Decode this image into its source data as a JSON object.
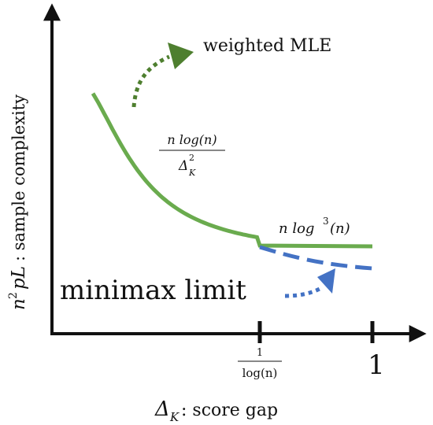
{
  "chart_data": {
    "type": "line",
    "xlabel": {
      "var": "Δ",
      "sub": "K",
      "text": ": score gap"
    },
    "ylabel": {
      "var": "n",
      "sup": "2",
      "rest": "pL",
      "text": ": sample complexity"
    },
    "ticks": [
      {
        "x": "1/log(n)",
        "label_num": "1",
        "label_den": "log(n)"
      },
      {
        "x": "1",
        "label": "1"
      }
    ],
    "series": [
      {
        "name": "weighted MLE",
        "color": "#6aab4e",
        "style": "solid",
        "segments": [
          "n log(n) / Δ_K^2 for Δ_K < 1/log(n)",
          "n log^3(n) for 1/log(n) ≤ Δ_K ≤ 1"
        ]
      },
      {
        "name": "minimax limit",
        "color": "#4472c4",
        "style": "dashed",
        "segments": [
          "coincides with weighted MLE for Δ_K < 1/log(n)",
          "below n log^3(n) for Δ_K > 1/log(n)"
        ]
      }
    ],
    "annotations": {
      "curve_formula": {
        "num": "n log(n)",
        "den_var": "Δ",
        "den_sup": "2",
        "den_sub": "K"
      },
      "plateau_formula": {
        "pre": "n log",
        "sup": "3",
        "post": "(n)"
      },
      "mle_label": "weighted MLE",
      "minimax_label": "minimax limit"
    },
    "colors": {
      "mle": "#6aab4e",
      "mle_arrow": "#4e7f2f",
      "minimax": "#4472c4",
      "axis": "#111111"
    }
  }
}
